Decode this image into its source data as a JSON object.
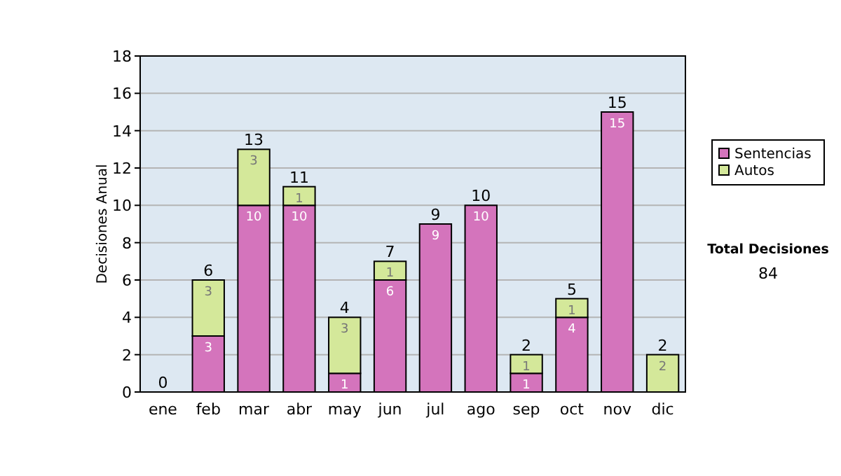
{
  "chart_data": {
    "type": "bar",
    "stacked": true,
    "ylabel": "Decisiones Anual",
    "categories": [
      "ene",
      "feb",
      "mar",
      "abr",
      "may",
      "jun",
      "jul",
      "ago",
      "sep",
      "oct",
      "nov",
      "dic"
    ],
    "series": [
      {
        "name": "Sentencias",
        "color": "#d474bc",
        "values": [
          0,
          3,
          10,
          10,
          1,
          6,
          9,
          10,
          1,
          4,
          15,
          0
        ],
        "value_labels": [
          null,
          "3",
          "10",
          "10",
          "1",
          "6",
          "9",
          "10",
          "1",
          "4",
          "15",
          null
        ]
      },
      {
        "name": "Autos",
        "color": "#d4e89a",
        "values": [
          0,
          3,
          3,
          1,
          3,
          1,
          0,
          0,
          1,
          1,
          0,
          2
        ],
        "value_labels": [
          null,
          "3",
          "3",
          "1",
          "3",
          "1",
          null,
          null,
          "1",
          "1",
          null,
          "2"
        ]
      }
    ],
    "totals": [
      "0",
      "6",
      "13",
      "11",
      "4",
      "7",
      "9",
      "10",
      "2",
      "5",
      "15",
      "2"
    ],
    "ylim": [
      0,
      18
    ],
    "yticks": [
      0,
      2,
      4,
      6,
      8,
      10,
      12,
      14,
      16,
      18
    ],
    "grid": "y",
    "legend": "right",
    "annotations": [
      "Total Decisiones",
      "84"
    ]
  }
}
